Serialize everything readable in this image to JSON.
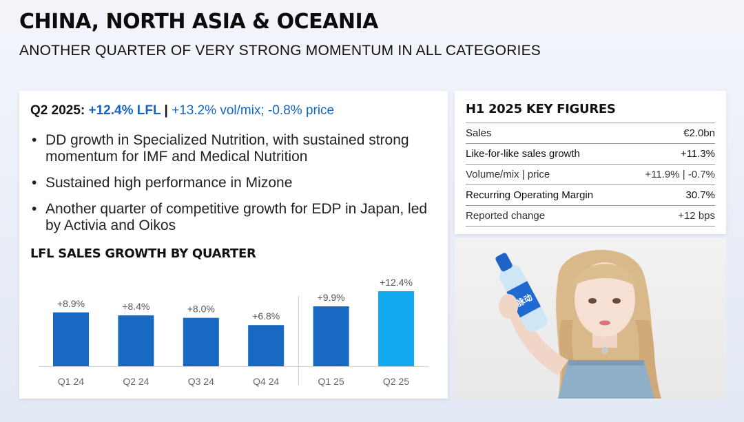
{
  "header": {
    "title": "CHINA, NORTH ASIA & OCEANIA",
    "subtitle": "ANOTHER QUARTER OF VERY STRONG MOMENTUM IN ALL CATEGORIES"
  },
  "summary": {
    "period": "Q2 2025: ",
    "lfl": "+12.4% LFL",
    "separator": " | ",
    "detail": "+13.2% vol/mix; -0.8% price"
  },
  "bullets": [
    "DD growth in Specialized Nutrition, with sustained strong momentum for IMF and Medical Nutrition",
    "Sustained high performance in Mizone",
    "Another quarter of competitive growth for EDP in Japan, led by Activia and Oikos"
  ],
  "chart_title": "LFL SALES GROWTH BY QUARTER",
  "chart_data": {
    "type": "bar",
    "title": "LFL SALES GROWTH BY QUARTER",
    "categories": [
      "Q1 24",
      "Q2 24",
      "Q3 24",
      "Q4 24",
      "Q1 25",
      "Q2 25"
    ],
    "values": [
      8.9,
      8.4,
      8.0,
      6.8,
      9.9,
      12.4
    ],
    "labels": [
      "+8.9%",
      "+8.4%",
      "+8.0%",
      "+6.8%",
      "+9.9%",
      "+12.4%"
    ],
    "unit": "%",
    "colors": [
      "#1769c2",
      "#1769c2",
      "#1769c2",
      "#1769c2",
      "#1769c2",
      "#14aaf0"
    ],
    "ylim": [
      0,
      12.4
    ],
    "grid": false,
    "divider_after_index": 3
  },
  "key_figures": {
    "title": "H1 2025 KEY FIGURES",
    "rows": [
      {
        "label": "Sales",
        "value": "€2.0bn"
      },
      {
        "label": "Like-for-like sales growth",
        "value": "+11.3%"
      },
      {
        "label": "Volume/mix | price",
        "value": "+11.9% | -0.7%"
      },
      {
        "label": "Recurring Operating Margin",
        "value": "30.7%"
      },
      {
        "label": "Reported change",
        "value": "+12 bps"
      }
    ]
  },
  "photo": {
    "bottle_label": "脉动"
  },
  "colors": {
    "accent_blue": "#1565c0",
    "bar_blue": "#1769c2",
    "bar_highlight": "#14aaf0"
  }
}
